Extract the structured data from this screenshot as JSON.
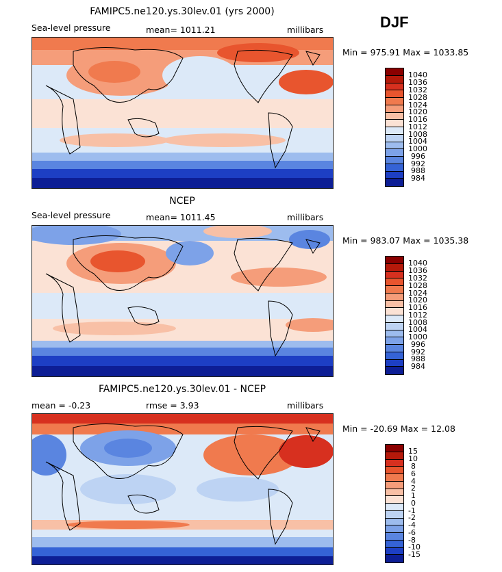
{
  "season": "DJF",
  "panels": [
    {
      "title": "FAMIPC5.ne120.ys.30lev.01 (yrs 2000)",
      "left_label": "Sea-level pressure",
      "center_label": "mean= 1011.21",
      "units": "millibars",
      "minmax": "Min = 975.91 Max = 1033.85",
      "colorbar_labels": [
        "1040",
        "1036",
        "1032",
        "1028",
        "1024",
        "1020",
        "1016",
        "1012",
        "1008",
        "1004",
        "1000",
        "996",
        "992",
        "988",
        "984"
      ],
      "colorbar_colors": [
        "#8b0000",
        "#b5190a",
        "#d7301f",
        "#e8552e",
        "#f07a4e",
        "#f59d7a",
        "#f8c0a6",
        "#fbe2d5",
        "#dce9f8",
        "#bdd3f3",
        "#9dbcee",
        "#7da2e8",
        "#5a85e0",
        "#3563d6",
        "#1d3fc4",
        "#0d1e95"
      ]
    },
    {
      "title": "NCEP",
      "left_label": "Sea-level pressure",
      "center_label": "mean= 1011.45",
      "units": "millibars",
      "minmax": "Min = 983.07 Max = 1035.38",
      "colorbar_labels": [
        "1040",
        "1036",
        "1032",
        "1028",
        "1024",
        "1020",
        "1016",
        "1012",
        "1008",
        "1004",
        "1000",
        "996",
        "992",
        "988",
        "984"
      ],
      "colorbar_colors": [
        "#8b0000",
        "#b5190a",
        "#d7301f",
        "#e8552e",
        "#f07a4e",
        "#f59d7a",
        "#f8c0a6",
        "#fbe2d5",
        "#dce9f8",
        "#bdd3f3",
        "#9dbcee",
        "#7da2e8",
        "#5a85e0",
        "#3563d6",
        "#1d3fc4",
        "#0d1e95"
      ]
    },
    {
      "title": "FAMIPC5.ne120.ys.30lev.01 - NCEP",
      "left_label": "mean =  -0.23",
      "center_label": "rmse =    3.93",
      "units": "millibars",
      "minmax": "Min = -20.69 Max =  12.08",
      "colorbar_labels": [
        "15",
        "10",
        "8",
        "6",
        "4",
        "2",
        "1",
        "0",
        "-1",
        "-2",
        "-4",
        "-6",
        "-8",
        "-10",
        "-15"
      ],
      "colorbar_colors": [
        "#8b0000",
        "#b5190a",
        "#d7301f",
        "#e8552e",
        "#f07a4e",
        "#f59d7a",
        "#f8c0a6",
        "#fbe2d5",
        "#dce9f8",
        "#bdd3f3",
        "#9dbcee",
        "#7da2e8",
        "#5a85e0",
        "#3563d6",
        "#1d3fc4",
        "#0d1e95"
      ]
    }
  ]
}
